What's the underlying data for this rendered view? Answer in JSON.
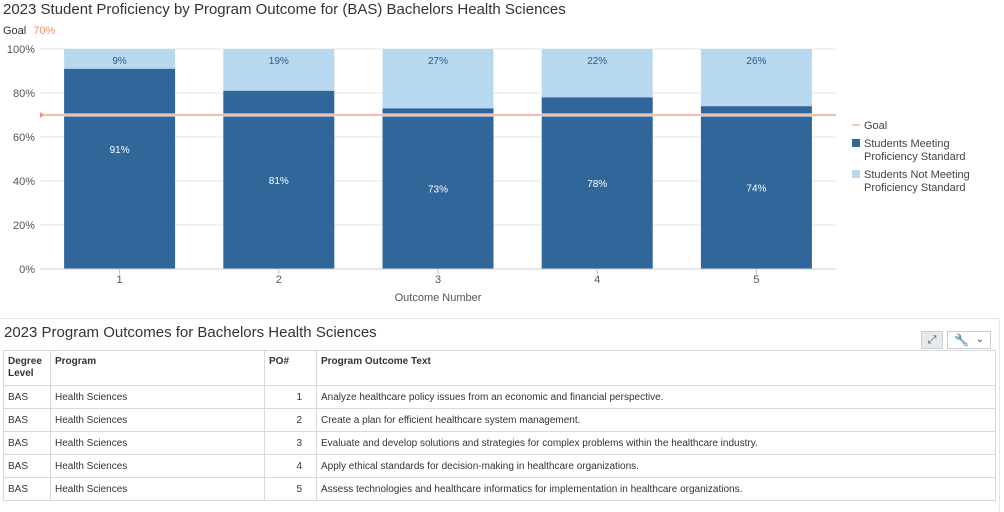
{
  "chart_title": "2023 Student Proficiency by Program Outcome for (BAS) Bachelors Health Sciences",
  "goal": {
    "label": "Goal",
    "value_label": "70%",
    "value": 70
  },
  "chart_data": {
    "type": "bar",
    "stacked": true,
    "categories": [
      "1",
      "2",
      "3",
      "4",
      "5"
    ],
    "series": [
      {
        "name": "Students Meeting Proficiency Standard",
        "values": [
          91,
          81,
          73,
          78,
          74
        ],
        "labels": [
          "91%",
          "81%",
          "73%",
          "78%",
          "74%"
        ],
        "color": "#30669a"
      },
      {
        "name": "Students Not Meeting Proficiency Standard",
        "values": [
          9,
          19,
          27,
          22,
          26
        ],
        "labels": [
          "9%",
          "19%",
          "27%",
          "22%",
          "26%"
        ],
        "color": "#b8d8f0"
      }
    ],
    "goal_line": 70,
    "goal_color": "#f0906c",
    "xlabel": "Outcome Number",
    "ylabel": "",
    "ylim": [
      0,
      100
    ],
    "yticks": [
      "0%",
      "20%",
      "40%",
      "60%",
      "80%",
      "100%"
    ],
    "grid": true,
    "legend_position": "right",
    "legend": [
      "Goal",
      "Students Meeting Proficiency Standard",
      "Students Not Meeting Proficiency Standard"
    ]
  },
  "table": {
    "title": "2023 Program Outcomes for Bachelors Health Sciences",
    "headers": {
      "degree": "Degree Level",
      "program": "Program",
      "po": "PO#",
      "text": "Program Outcome Text"
    },
    "rows": [
      {
        "degree": "BAS",
        "program": "Health Sciences",
        "po": "1",
        "text": "Analyze healthcare policy issues from an economic and financial perspective."
      },
      {
        "degree": "BAS",
        "program": "Health Sciences",
        "po": "2",
        "text": "Create a plan for efficient healthcare system management."
      },
      {
        "degree": "BAS",
        "program": "Health Sciences",
        "po": "3",
        "text": "Evaluate and develop solutions and strategies for complex problems within the healthcare industry."
      },
      {
        "degree": "BAS",
        "program": "Health Sciences",
        "po": "4",
        "text": "Apply ethical standards for decision-making in healthcare organizations."
      },
      {
        "degree": "BAS",
        "program": "Health Sciences",
        "po": "5",
        "text": "Assess technologies and healthcare informatics for implementation in healthcare organizations."
      }
    ]
  },
  "toolbar": {
    "expand_icon": "expand-icon",
    "wrench_icon": "wrench-icon",
    "chevron_icon": "chevron-down-icon"
  }
}
